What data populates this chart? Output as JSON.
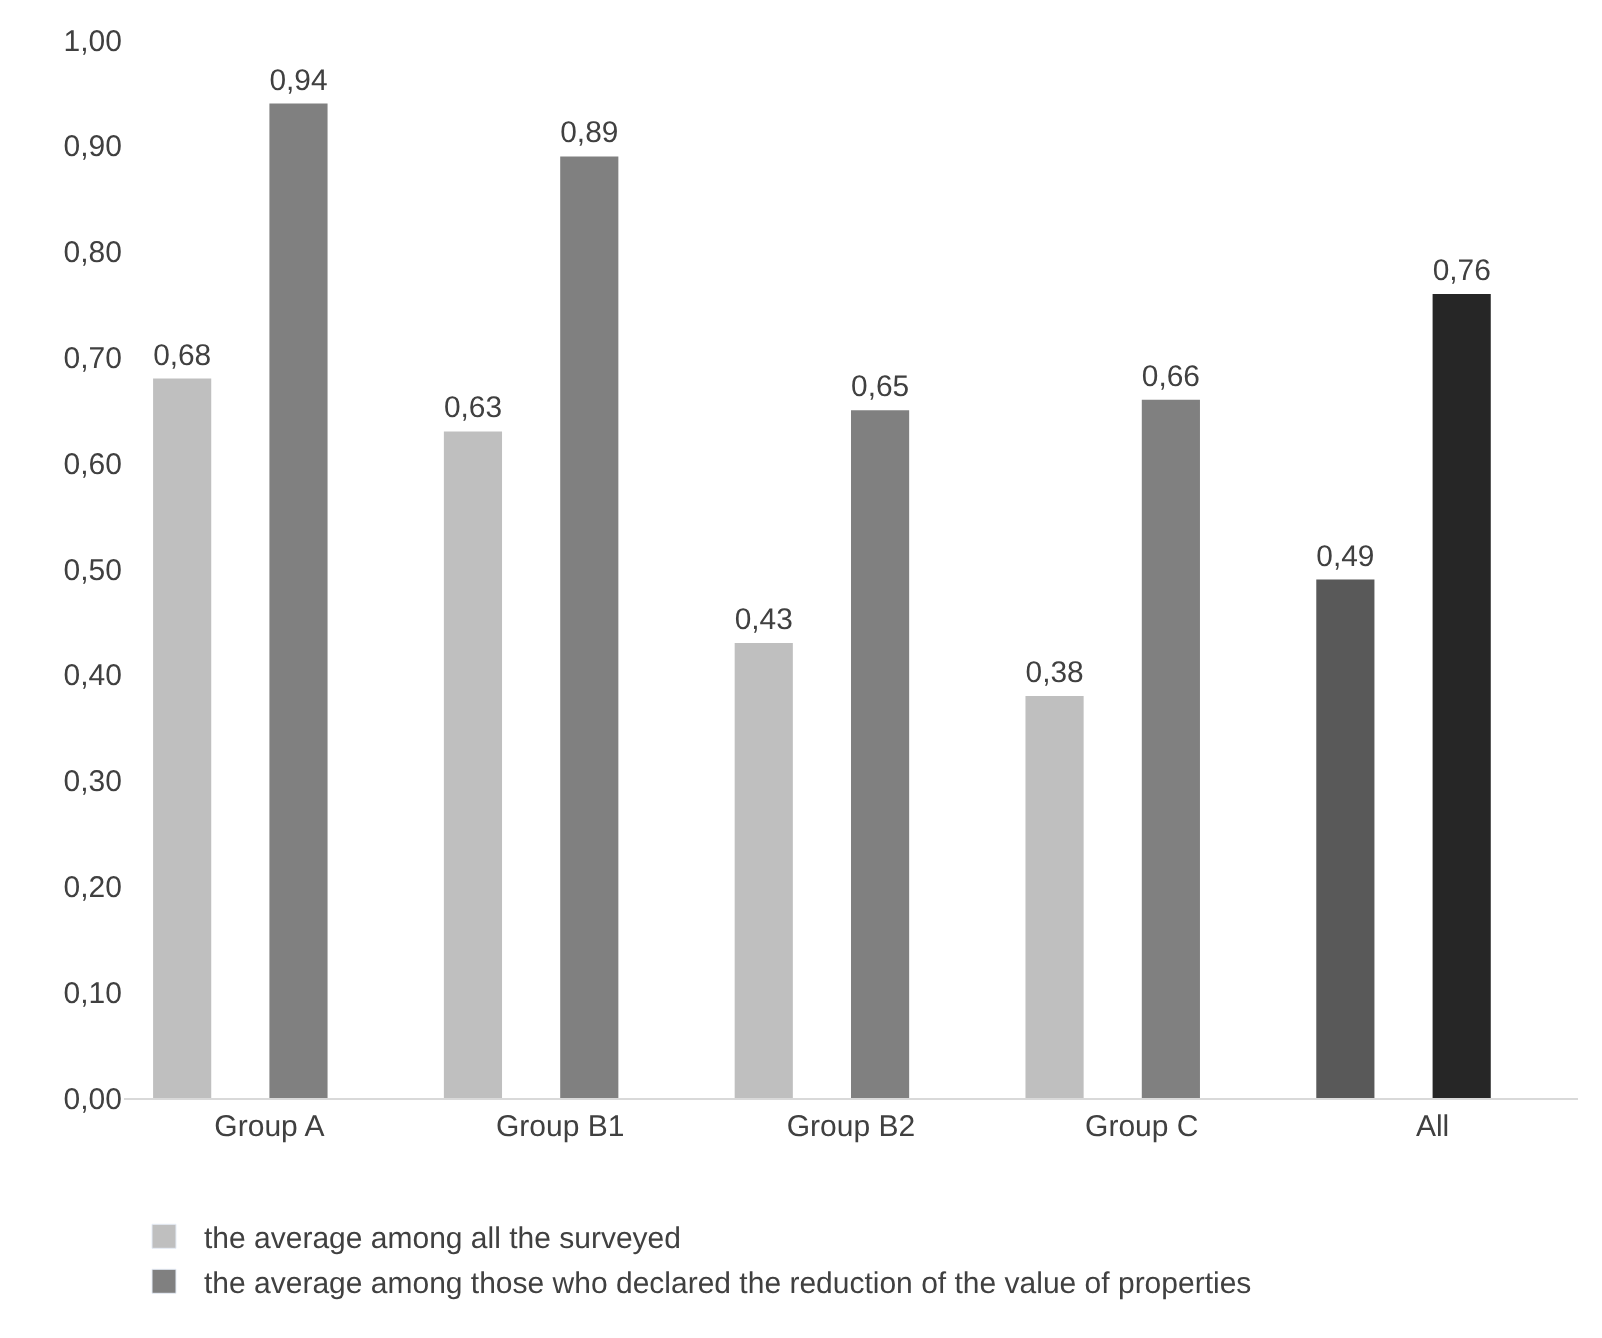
{
  "chart_data": {
    "type": "bar",
    "categories": [
      "Group A",
      "Group B1",
      "Group B2",
      "Group C",
      "All"
    ],
    "series": [
      {
        "name": "the average among all the surveyed",
        "color": "#bfbfbf",
        "colors": [
          "#bfbfbf",
          "#bfbfbf",
          "#bfbfbf",
          "#bfbfbf",
          "#595959"
        ],
        "values": [
          0.68,
          0.63,
          0.43,
          0.38,
          0.49
        ],
        "value_labels": [
          "0,68",
          "0,63",
          "0,43",
          "0,38",
          "0,49"
        ]
      },
      {
        "name": "the average among those who declared the reduction of the value of properties",
        "color": "#808080",
        "colors": [
          "#808080",
          "#808080",
          "#808080",
          "#808080",
          "#262626"
        ],
        "values": [
          0.94,
          0.89,
          0.65,
          0.66,
          0.76
        ],
        "value_labels": [
          "0,94",
          "0,89",
          "0,65",
          "0,66",
          "0,76"
        ]
      }
    ],
    "ylim": [
      0,
      1
    ],
    "yticks": [
      {
        "value": 0,
        "label": "0,00"
      },
      {
        "value": 0.1,
        "label": "0,10"
      },
      {
        "value": 0.2,
        "label": "0,20"
      },
      {
        "value": 0.3,
        "label": "0,30"
      },
      {
        "value": 0.4,
        "label": "0,40"
      },
      {
        "value": 0.5,
        "label": "0,50"
      },
      {
        "value": 0.6,
        "label": "0,60"
      },
      {
        "value": 0.7,
        "label": "0,70"
      },
      {
        "value": 0.8,
        "label": "0,80"
      },
      {
        "value": 0.9,
        "label": "0,90"
      },
      {
        "value": 1,
        "label": "1,00"
      }
    ],
    "legend": "bottom left"
  }
}
